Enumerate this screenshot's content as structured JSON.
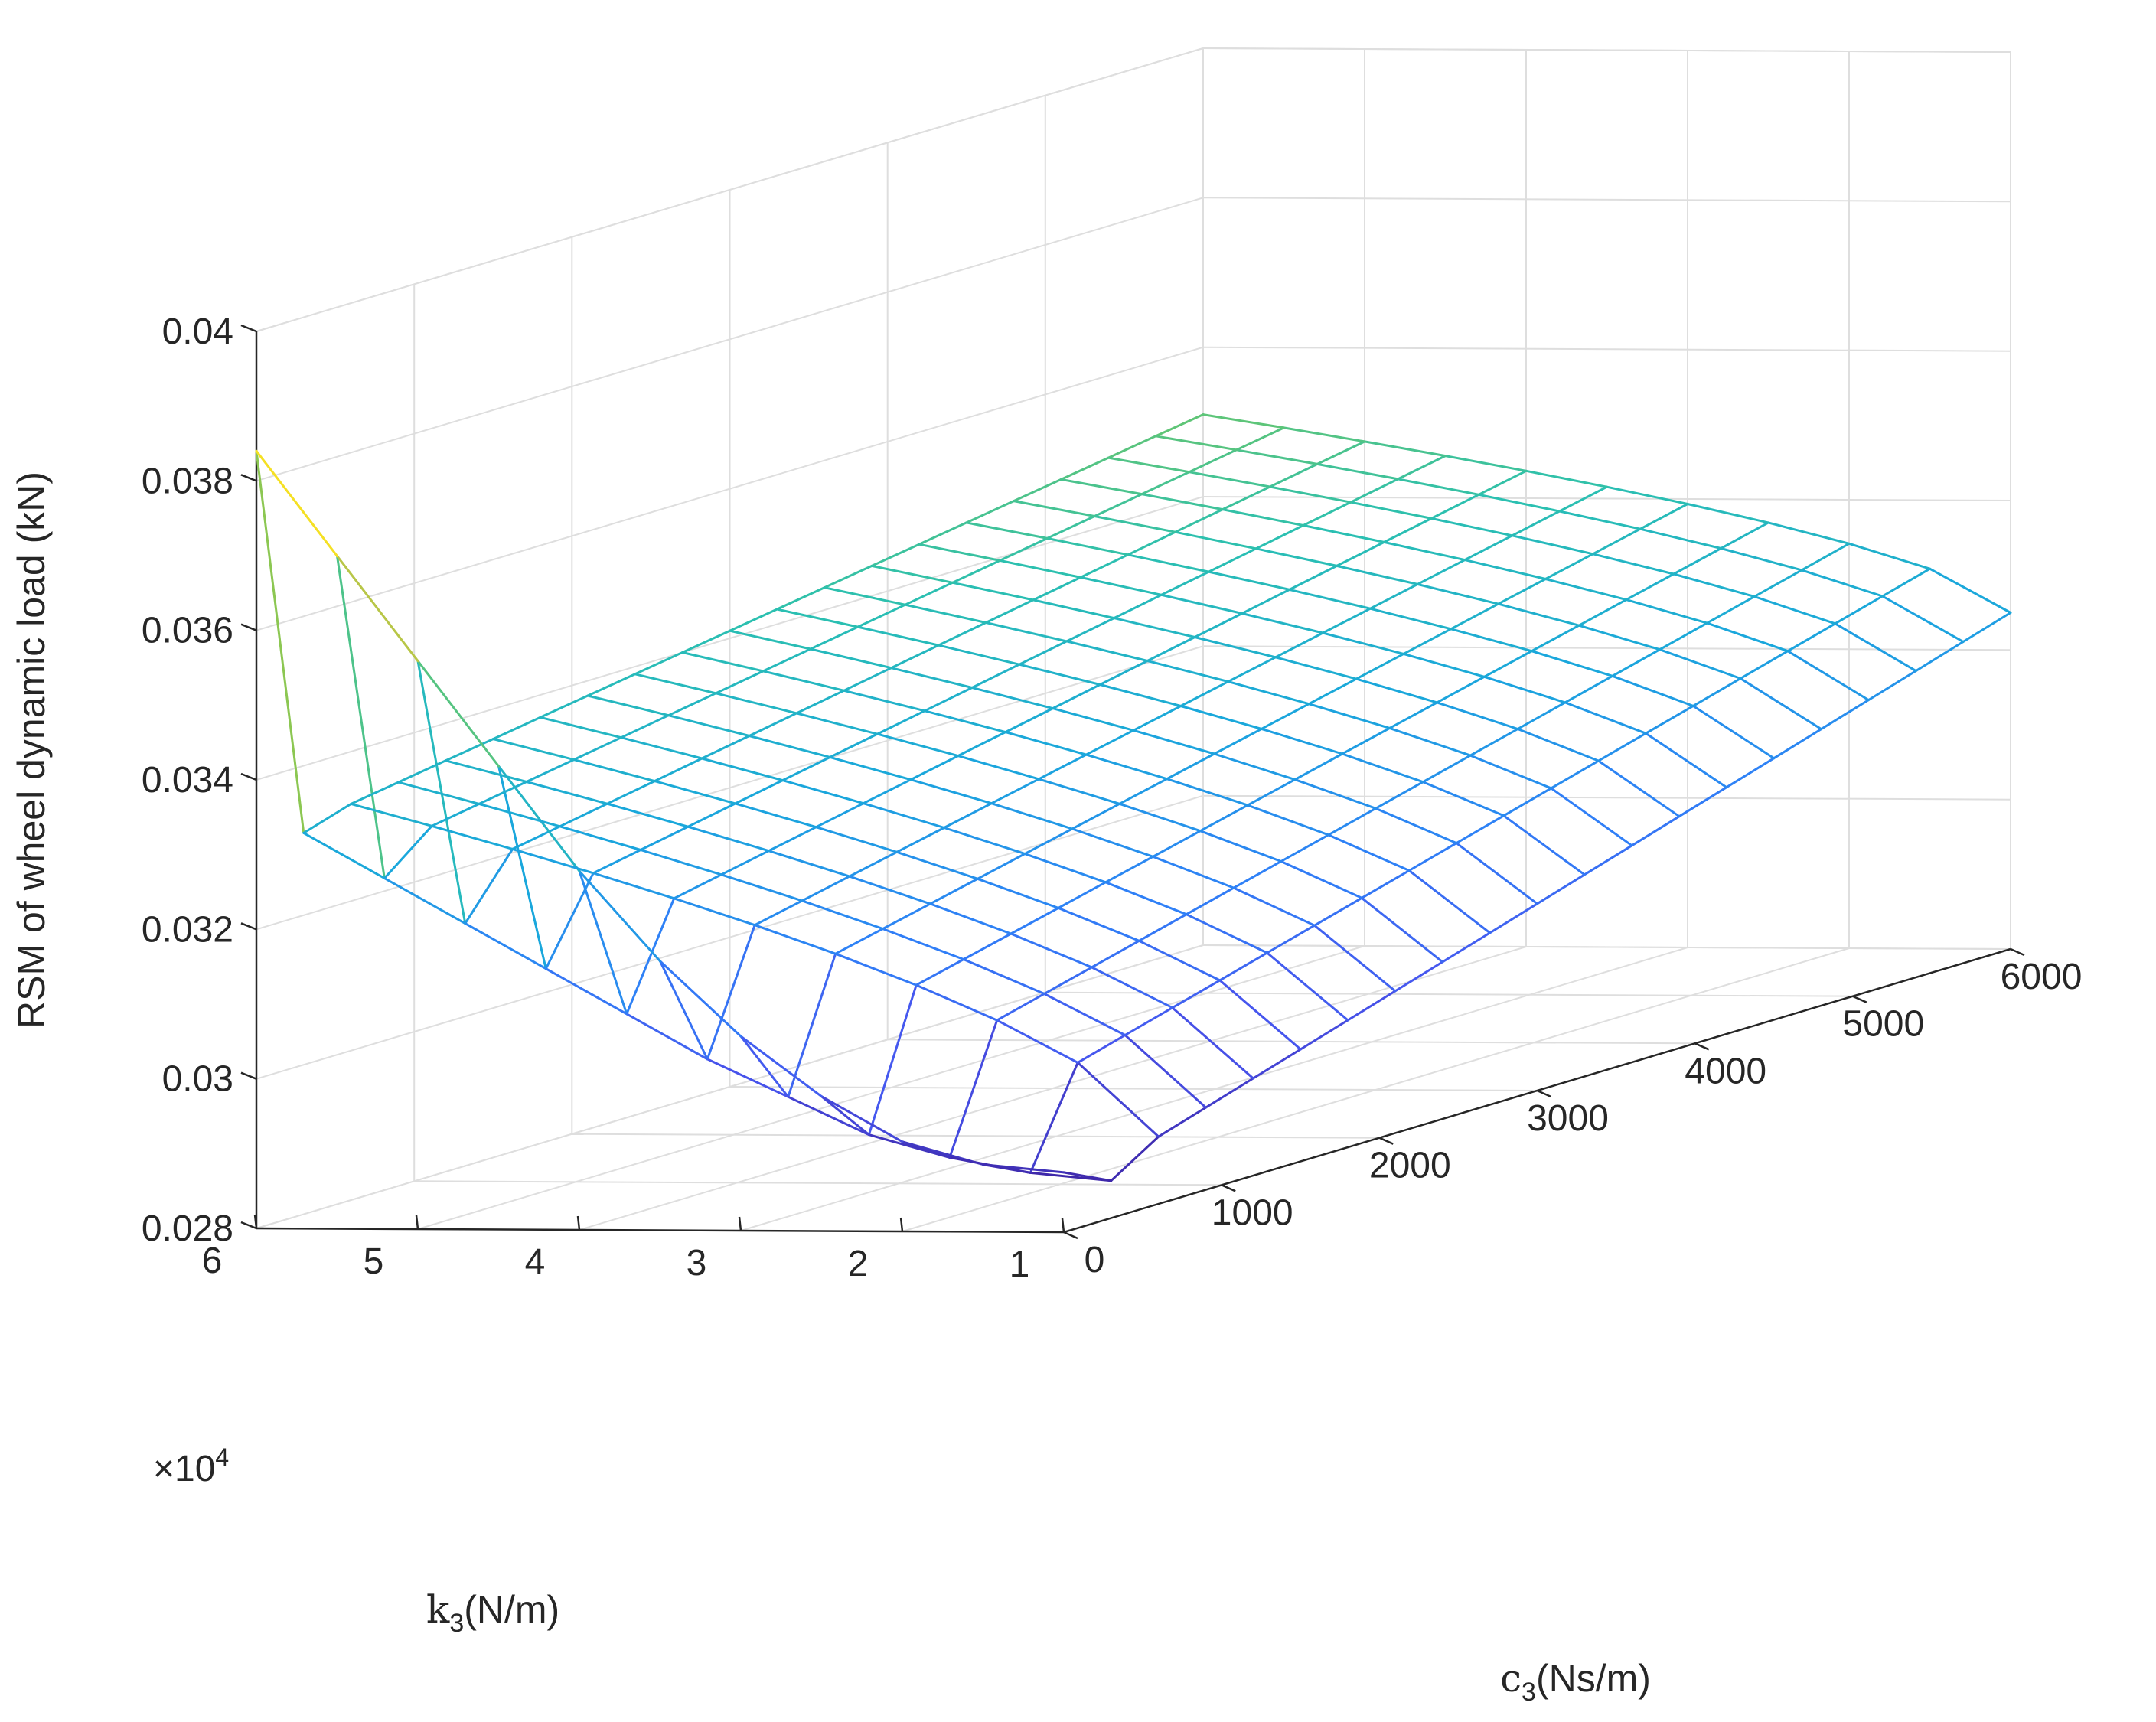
{
  "chart_data": {
    "type": "surface-mesh",
    "zlabel": "RSM of wheel dynamic load (kN)",
    "xlabel": {
      "main": "c",
      "sub": "3",
      "unit": "(Ns/m)"
    },
    "ylabel": {
      "main": "k",
      "sub": "3",
      "unit": "(N/m)"
    },
    "y_exponent": {
      "prefix": "×10",
      "power": "4"
    },
    "xlim": [
      0,
      6000
    ],
    "ylim": [
      1,
      6
    ],
    "zlim": [
      0.028,
      0.04
    ],
    "x_ticks": [
      0,
      1000,
      2000,
      3000,
      4000,
      5000,
      6000
    ],
    "x_tick_labels": [
      "0",
      "1000",
      "2000",
      "3000",
      "4000",
      "5000",
      "6000"
    ],
    "y_ticks": [
      1,
      2,
      3,
      4,
      5,
      6
    ],
    "y_tick_labels": [
      "1",
      "2",
      "3",
      "4",
      "5",
      "6"
    ],
    "z_ticks": [
      0.028,
      0.03,
      0.032,
      0.034,
      0.036,
      0.038,
      0.04
    ],
    "z_tick_labels": [
      "0.028",
      "0.03",
      "0.032",
      "0.034",
      "0.036",
      "0.038",
      "0.04"
    ],
    "colormap": "parula",
    "colormap_stops": [
      "#3e26a8",
      "#4755ee",
      "#2f80f7",
      "#1aa7dc",
      "#2bc0b0",
      "#7dc856",
      "#f0c438",
      "#f9fb0e"
    ],
    "grid": true,
    "x_grid_values": [
      0,
      300,
      600,
      900,
      1200,
      1500,
      1800,
      2100,
      2400,
      2700,
      3000,
      3300,
      3600,
      3900,
      4200,
      4500,
      4800,
      5100,
      5400,
      5700,
      6000
    ],
    "y_grid_values": [
      1,
      1.5,
      2,
      2.5,
      3,
      3.5,
      4,
      4.5,
      5,
      5.5,
      6
    ],
    "z_at_c0": [
      0.0288,
      0.0289,
      0.0292,
      0.0298,
      0.0306,
      0.0316,
      0.0328,
      0.0342,
      0.0356,
      0.037,
      0.0384
    ],
    "z_at_c300": [
      0.0285,
      0.0286,
      0.0288,
      0.0291,
      0.0296,
      0.0301,
      0.0307,
      0.0313,
      0.0319,
      0.0325,
      0.0331
    ],
    "z_plane_at_k1": [
      0.0285,
      0.0287,
      0.0289,
      0.0291,
      0.0293,
      0.0295,
      0.0297,
      0.0299,
      0.0301,
      0.0303,
      0.0305,
      0.0307,
      0.0309,
      0.0311,
      0.0313,
      0.0315,
      0.0317,
      0.0319,
      0.0321,
      0.0323,
      0.0325
    ],
    "z_plane_at_k6": [
      0.0331,
      0.0332,
      0.0333,
      0.0334,
      0.0335,
      0.0336,
      0.0337,
      0.0338,
      0.0339,
      0.034,
      0.0341,
      0.0342,
      0.0343,
      0.0344,
      0.0345,
      0.0346,
      0.0347,
      0.0348,
      0.0349,
      0.035,
      0.0351
    ]
  }
}
